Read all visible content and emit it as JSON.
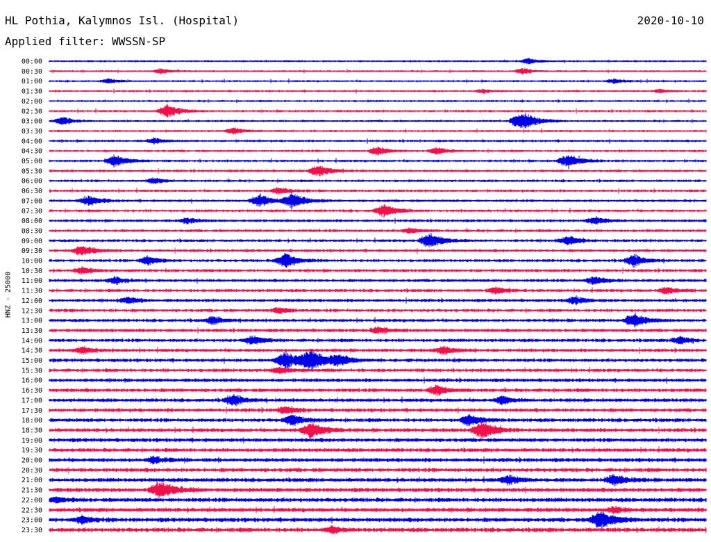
{
  "header": {
    "station": "HL Pothia, Kalymnos Isl. (Hospital)",
    "date": "2020-10-10",
    "filter": "Applied filter: WWSSN-SP"
  },
  "chart_data": {
    "type": "line",
    "title": "HL Pothia, Kalymnos Isl. (Hospital)",
    "subtitle": "Applied filter: WWSSN-SP",
    "ylabel": "HNZ - 25000",
    "colors": {
      "even_trace": "#0000e6",
      "odd_trace": "#f0104a"
    },
    "rows": [
      {
        "label": "00:00",
        "events": [
          {
            "t": 0.73,
            "a": 0.3
          }
        ]
      },
      {
        "label": "00:30",
        "events": [
          {
            "t": 0.17,
            "a": 0.25
          },
          {
            "t": 0.72,
            "a": 0.3
          }
        ]
      },
      {
        "label": "01:00",
        "events": [
          {
            "t": 0.09,
            "a": 0.25
          },
          {
            "t": 0.86,
            "a": 0.25
          }
        ]
      },
      {
        "label": "01:30",
        "events": [
          {
            "t": 0.66,
            "a": 0.2
          },
          {
            "t": 0.93,
            "a": 0.2
          }
        ]
      },
      {
        "label": "02:00",
        "events": []
      },
      {
        "label": "02:30",
        "events": [
          {
            "t": 0.18,
            "a": 0.7
          }
        ]
      },
      {
        "label": "03:00",
        "events": [
          {
            "t": 0.02,
            "a": 0.4
          },
          {
            "t": 0.72,
            "a": 1.0
          }
        ]
      },
      {
        "label": "03:30",
        "events": [
          {
            "t": 0.28,
            "a": 0.3
          }
        ]
      },
      {
        "label": "04:00",
        "events": [
          {
            "t": 0.16,
            "a": 0.3
          }
        ]
      },
      {
        "label": "04:30",
        "events": [
          {
            "t": 0.5,
            "a": 0.45
          },
          {
            "t": 0.59,
            "a": 0.35
          }
        ]
      },
      {
        "label": "05:00",
        "events": [
          {
            "t": 0.1,
            "a": 0.6
          },
          {
            "t": 0.79,
            "a": 0.7
          }
        ]
      },
      {
        "label": "05:30",
        "events": [
          {
            "t": 0.41,
            "a": 0.6
          }
        ]
      },
      {
        "label": "06:00",
        "events": [
          {
            "t": 0.16,
            "a": 0.3
          }
        ]
      },
      {
        "label": "06:30",
        "events": [
          {
            "t": 0.35,
            "a": 0.35
          }
        ]
      },
      {
        "label": "07:00",
        "events": [
          {
            "t": 0.06,
            "a": 0.5
          },
          {
            "t": 0.32,
            "a": 0.6
          },
          {
            "t": 0.37,
            "a": 0.8
          }
        ]
      },
      {
        "label": "07:30",
        "events": [
          {
            "t": 0.51,
            "a": 0.65
          }
        ]
      },
      {
        "label": "08:00",
        "events": [
          {
            "t": 0.21,
            "a": 0.3
          },
          {
            "t": 0.83,
            "a": 0.4
          }
        ]
      },
      {
        "label": "08:30",
        "events": [
          {
            "t": 0.55,
            "a": 0.3
          }
        ]
      },
      {
        "label": "09:00",
        "events": [
          {
            "t": 0.58,
            "a": 0.75
          },
          {
            "t": 0.79,
            "a": 0.45
          }
        ]
      },
      {
        "label": "09:30",
        "events": [
          {
            "t": 0.05,
            "a": 0.55
          }
        ]
      },
      {
        "label": "10:00",
        "events": [
          {
            "t": 0.15,
            "a": 0.45
          },
          {
            "t": 0.36,
            "a": 0.7
          },
          {
            "t": 0.89,
            "a": 0.6
          }
        ]
      },
      {
        "label": "10:30",
        "events": [
          {
            "t": 0.05,
            "a": 0.35
          }
        ]
      },
      {
        "label": "11:00",
        "events": [
          {
            "t": 0.1,
            "a": 0.35
          },
          {
            "t": 0.83,
            "a": 0.45
          }
        ]
      },
      {
        "label": "11:30",
        "events": [
          {
            "t": 0.68,
            "a": 0.35
          },
          {
            "t": 0.94,
            "a": 0.35
          }
        ]
      },
      {
        "label": "12:00",
        "events": [
          {
            "t": 0.12,
            "a": 0.35
          },
          {
            "t": 0.8,
            "a": 0.4
          }
        ]
      },
      {
        "label": "12:30",
        "events": [
          {
            "t": 0.35,
            "a": 0.3
          }
        ]
      },
      {
        "label": "13:00",
        "events": [
          {
            "t": 0.25,
            "a": 0.4
          },
          {
            "t": 0.89,
            "a": 0.7
          }
        ]
      },
      {
        "label": "13:30",
        "events": [
          {
            "t": 0.5,
            "a": 0.35
          }
        ]
      },
      {
        "label": "14:00",
        "events": [
          {
            "t": 0.31,
            "a": 0.45
          },
          {
            "t": 0.96,
            "a": 0.4
          }
        ]
      },
      {
        "label": "14:30",
        "events": [
          {
            "t": 0.05,
            "a": 0.35
          },
          {
            "t": 0.6,
            "a": 0.4
          }
        ]
      },
      {
        "label": "15:00",
        "events": [
          {
            "t": 0.36,
            "a": 0.9
          },
          {
            "t": 0.4,
            "a": 1.0
          },
          {
            "t": 0.44,
            "a": 0.55
          }
        ]
      },
      {
        "label": "15:30",
        "events": [
          {
            "t": 0.35,
            "a": 0.3
          }
        ]
      },
      {
        "label": "16:00",
        "events": []
      },
      {
        "label": "16:30",
        "events": [
          {
            "t": 0.59,
            "a": 0.5
          }
        ]
      },
      {
        "label": "17:00",
        "events": [
          {
            "t": 0.28,
            "a": 0.55
          },
          {
            "t": 0.69,
            "a": 0.4
          }
        ]
      },
      {
        "label": "17:30",
        "events": [
          {
            "t": 0.36,
            "a": 0.4
          }
        ]
      },
      {
        "label": "18:00",
        "events": [
          {
            "t": 0.37,
            "a": 0.55
          },
          {
            "t": 0.64,
            "a": 0.55
          }
        ]
      },
      {
        "label": "18:30",
        "events": [
          {
            "t": 0.4,
            "a": 0.8
          },
          {
            "t": 0.66,
            "a": 0.85
          }
        ]
      },
      {
        "label": "19:00",
        "events": []
      },
      {
        "label": "19:30",
        "events": []
      },
      {
        "label": "20:00",
        "events": [
          {
            "t": 0.16,
            "a": 0.35
          }
        ]
      },
      {
        "label": "20:30",
        "events": []
      },
      {
        "label": "21:00",
        "events": [
          {
            "t": 0.7,
            "a": 0.45
          },
          {
            "t": 0.86,
            "a": 0.55
          }
        ]
      },
      {
        "label": "21:30",
        "events": [
          {
            "t": 0.17,
            "a": 0.9
          }
        ]
      },
      {
        "label": "22:00",
        "events": [
          {
            "t": 0.01,
            "a": 0.3
          }
        ]
      },
      {
        "label": "22:30",
        "events": [
          {
            "t": 0.86,
            "a": 0.3
          }
        ]
      },
      {
        "label": "23:00",
        "events": [
          {
            "t": 0.05,
            "a": 0.35
          },
          {
            "t": 0.84,
            "a": 0.9
          }
        ]
      },
      {
        "label": "23:30",
        "events": [
          {
            "t": 0.43,
            "a": 0.3
          }
        ]
      }
    ]
  }
}
